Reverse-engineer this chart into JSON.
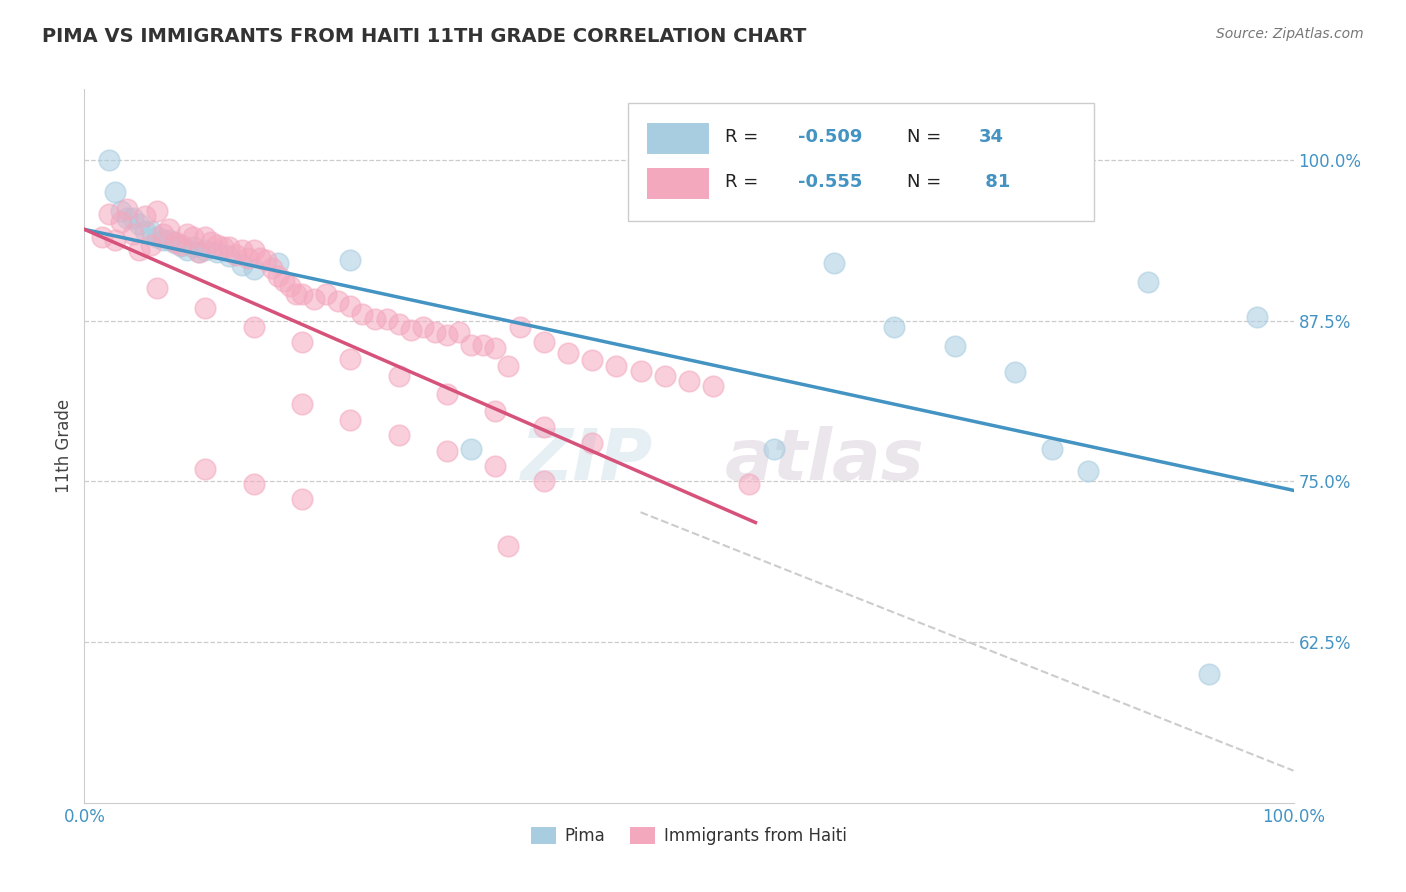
{
  "title": "PIMA VS IMMIGRANTS FROM HAITI 11TH GRADE CORRELATION CHART",
  "source": "Source: ZipAtlas.com",
  "ylabel": "11th Grade",
  "yticks": [
    0.625,
    0.75,
    0.875,
    1.0
  ],
  "ytick_labels": [
    "62.5%",
    "75.0%",
    "87.5%",
    "100.0%"
  ],
  "legend_blue_r": "-0.509",
  "legend_blue_n": "34",
  "legend_pink_r": "-0.555",
  "legend_pink_n": "81",
  "blue_color": "#a8cce0",
  "pink_color": "#f4a8be",
  "blue_line_color": "#4393c3",
  "pink_line_color": "#d6527a",
  "dashed_line_color": "#cccccc",
  "watermark_zip": "ZIP",
  "watermark_atlas": "atlas",
  "blue_scatter_x": [
    0.02,
    0.025,
    0.03,
    0.035,
    0.04,
    0.045,
    0.05,
    0.055,
    0.06,
    0.065,
    0.07,
    0.075,
    0.08,
    0.085,
    0.09,
    0.095,
    0.1,
    0.11,
    0.12,
    0.13,
    0.14,
    0.16,
    0.22,
    0.32,
    0.57,
    0.62,
    0.67,
    0.72,
    0.77,
    0.8,
    0.83,
    0.88,
    0.93,
    0.97
  ],
  "blue_scatter_y": [
    1.0,
    0.975,
    0.96,
    0.955,
    0.955,
    0.95,
    0.945,
    0.945,
    0.94,
    0.938,
    0.938,
    0.935,
    0.933,
    0.93,
    0.932,
    0.928,
    0.93,
    0.928,
    0.925,
    0.918,
    0.915,
    0.92,
    0.922,
    0.775,
    0.775,
    0.92,
    0.87,
    0.855,
    0.835,
    0.775,
    0.758,
    0.905,
    0.6,
    0.878
  ],
  "pink_scatter_x": [
    0.015,
    0.02,
    0.025,
    0.03,
    0.035,
    0.04,
    0.045,
    0.05,
    0.055,
    0.06,
    0.065,
    0.07,
    0.075,
    0.08,
    0.085,
    0.09,
    0.095,
    0.1,
    0.105,
    0.11,
    0.115,
    0.12,
    0.125,
    0.13,
    0.135,
    0.14,
    0.145,
    0.15,
    0.155,
    0.16,
    0.165,
    0.17,
    0.175,
    0.18,
    0.19,
    0.2,
    0.21,
    0.22,
    0.23,
    0.24,
    0.25,
    0.26,
    0.27,
    0.28,
    0.29,
    0.3,
    0.31,
    0.32,
    0.33,
    0.34,
    0.36,
    0.38,
    0.4,
    0.42,
    0.44,
    0.35,
    0.46,
    0.48,
    0.5,
    0.52,
    0.06,
    0.1,
    0.14,
    0.18,
    0.22,
    0.26,
    0.3,
    0.34,
    0.38,
    0.42,
    0.18,
    0.22,
    0.26,
    0.3,
    0.34,
    0.38,
    0.1,
    0.14,
    0.55,
    0.18,
    0.35
  ],
  "pink_scatter_y": [
    0.94,
    0.958,
    0.938,
    0.952,
    0.962,
    0.942,
    0.93,
    0.956,
    0.934,
    0.96,
    0.942,
    0.946,
    0.936,
    0.934,
    0.942,
    0.94,
    0.928,
    0.94,
    0.936,
    0.934,
    0.932,
    0.932,
    0.926,
    0.93,
    0.924,
    0.93,
    0.924,
    0.922,
    0.916,
    0.91,
    0.906,
    0.902,
    0.896,
    0.896,
    0.892,
    0.896,
    0.89,
    0.886,
    0.88,
    0.876,
    0.876,
    0.872,
    0.868,
    0.87,
    0.866,
    0.864,
    0.866,
    0.856,
    0.856,
    0.854,
    0.87,
    0.858,
    0.85,
    0.844,
    0.84,
    0.84,
    0.836,
    0.832,
    0.828,
    0.824,
    0.9,
    0.885,
    0.87,
    0.858,
    0.845,
    0.832,
    0.818,
    0.805,
    0.792,
    0.78,
    0.81,
    0.798,
    0.786,
    0.774,
    0.762,
    0.75,
    0.76,
    0.748,
    0.748,
    0.736,
    0.7
  ],
  "blue_line_x": [
    0.0,
    1.0
  ],
  "blue_line_y": [
    0.946,
    0.743
  ],
  "pink_line_x": [
    0.0,
    0.555
  ],
  "pink_line_y": [
    0.946,
    0.718
  ],
  "dashed_line_x": [
    0.46,
    1.0
  ],
  "dashed_line_y": [
    0.726,
    0.525
  ],
  "xlim": [
    0.0,
    1.0
  ],
  "ylim": [
    0.5,
    1.055
  ],
  "figsize": [
    14.06,
    8.92
  ],
  "dpi": 100
}
